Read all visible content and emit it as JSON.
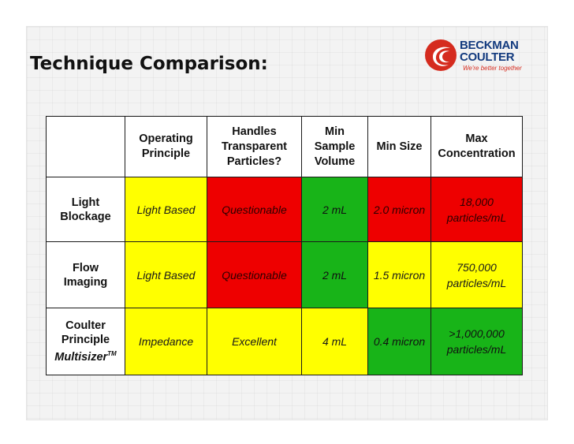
{
  "slide": {
    "title": "Technique Comparison:",
    "logo": {
      "brand_line1": "BECKMAN",
      "brand_line2": "COULTER",
      "tagline": "We're better together",
      "colors": {
        "brand_blue": "#123a7e",
        "brand_red": "#d52b1e"
      }
    }
  },
  "table": {
    "headers": [
      "",
      "Operating Principle",
      "Handles Transparent Particles?",
      "Min Sample Volume",
      "Min Size",
      "Max Concentration"
    ],
    "rows": [
      {
        "name_line1": "Light",
        "name_line2": "Blockage",
        "name_line3": "",
        "cells": [
          "Light Based",
          "Questionable",
          "2 mL",
          "2.0 micron",
          "18,000 particles/mL"
        ],
        "cell_colors": [
          "yellow",
          "red",
          "green",
          "red",
          "red"
        ]
      },
      {
        "name_line1": "Flow",
        "name_line2": "Imaging",
        "name_line3": "",
        "cells": [
          "Light Based",
          "Questionable",
          "2 mL",
          "1.5 micron",
          "750,000 particles/mL"
        ],
        "cell_colors": [
          "yellow",
          "red",
          "green",
          "yellow",
          "yellow"
        ]
      },
      {
        "name_line1": "Coulter",
        "name_line2": "Principle",
        "name_line3": "Multisizer",
        "name_line3_sup": "TM",
        "cells": [
          "Impedance",
          "Excellent",
          "4 mL",
          "0.4 micron",
          ">1,000,000 particles/mL"
        ],
        "cell_colors": [
          "yellow",
          "yellow",
          "yellow",
          "green",
          "green"
        ]
      }
    ],
    "colors": {
      "yellow": "#ffff00",
      "red": "#ee0000",
      "green": "#18b418"
    }
  }
}
